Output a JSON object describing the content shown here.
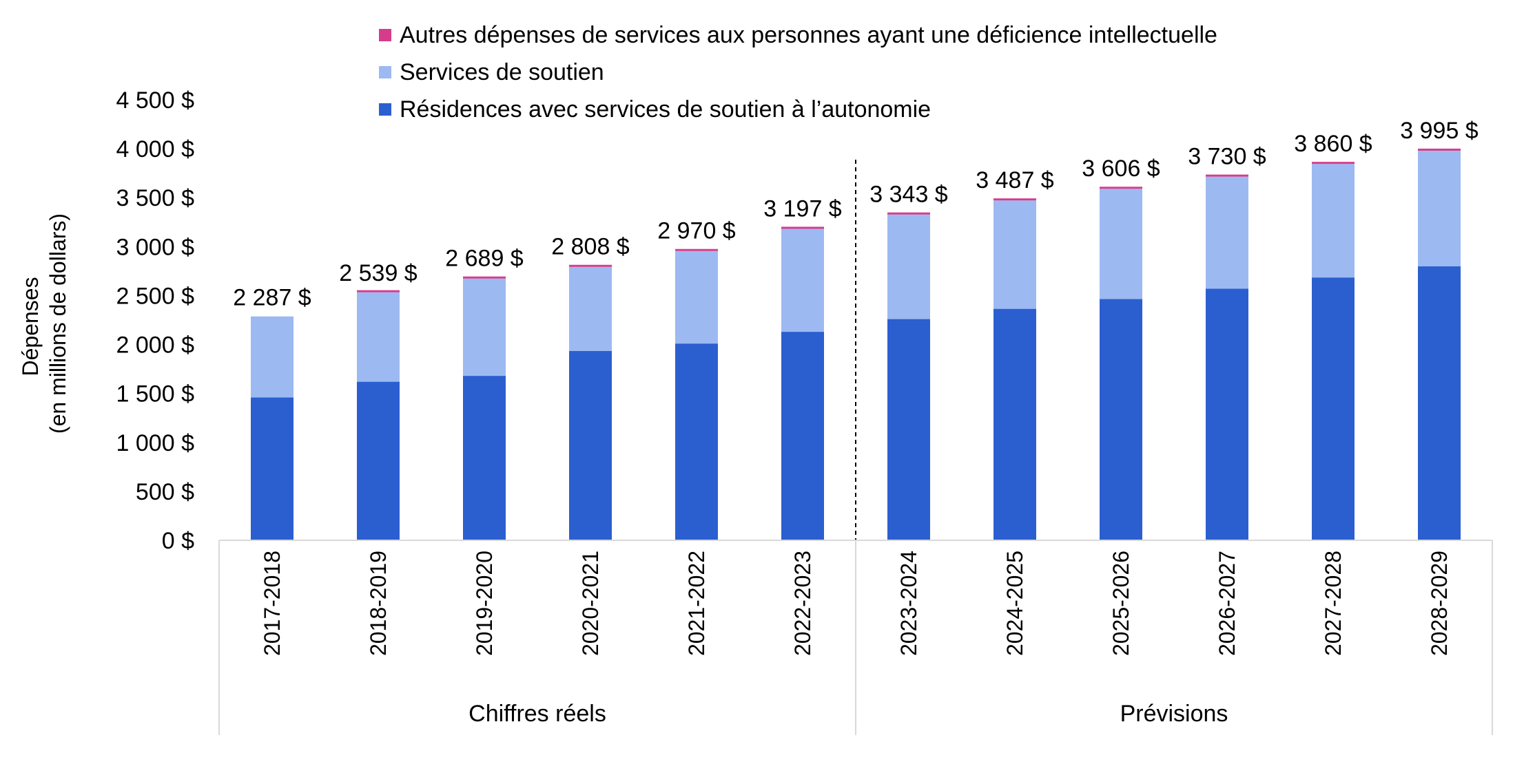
{
  "chart_data": {
    "type": "bar",
    "stacked": true,
    "categories": [
      "2017-2018",
      "2018-2019",
      "2019-2020",
      "2020-2021",
      "2021-2022",
      "2022-2023",
      "2023-2024",
      "2024-2025",
      "2025-2026",
      "2026-2027",
      "2027-2028",
      "2028-2029"
    ],
    "series": [
      {
        "name": "Résidences avec services de soutien à l’autonomie",
        "color": "#2b5fd0",
        "values": [
          1460,
          1620,
          1680,
          1935,
          2010,
          2130,
          2260,
          2365,
          2465,
          2570,
          2685,
          2800
        ]
      },
      {
        "name": "Services de soutien",
        "color": "#9db9f2",
        "values": [
          827,
          914,
          994,
          858,
          945,
          1052,
          1068,
          1107,
          1126,
          1145,
          1160,
          1180
        ]
      },
      {
        "name": "Autres dépenses de services aux personnes ayant une déficience intellectuelle",
        "color": "#d63c8c",
        "values": [
          0,
          5,
          15,
          15,
          15,
          15,
          15,
          15,
          15,
          15,
          15,
          15
        ]
      }
    ],
    "totals": [
      2287,
      2539,
      2689,
      2808,
      2970,
      3197,
      3343,
      3487,
      3606,
      3730,
      3860,
      3995
    ],
    "total_labels": [
      "2 287 $",
      "2 539 $",
      "2 689 $",
      "2 808 $",
      "2 970 $",
      "3 197 $",
      "3 343 $",
      "3 487 $",
      "3 606 $",
      "3 730 $",
      "3 860 $",
      "3 995 $"
    ],
    "y_ticks": [
      0,
      500,
      1000,
      1500,
      2000,
      2500,
      3000,
      3500,
      4000,
      4500
    ],
    "y_tick_labels": [
      "0 $",
      "500 $",
      "1 000 $",
      "1 500 $",
      "2 000 $",
      "2 500 $",
      "3 000 $",
      "3 500 $",
      "4 000 $",
      "4 500 $"
    ],
    "ylim": [
      0,
      4500
    ],
    "ylabel_lines": [
      "Dépenses",
      "(en millions de dollars)"
    ],
    "groups": [
      {
        "label": "Chiffres réels",
        "start": 0,
        "end": 5
      },
      {
        "label": "Prévisions",
        "start": 6,
        "end": 11
      }
    ],
    "legend_order": [
      2,
      1,
      0
    ],
    "legend_position": "top-center",
    "grid": false
  }
}
